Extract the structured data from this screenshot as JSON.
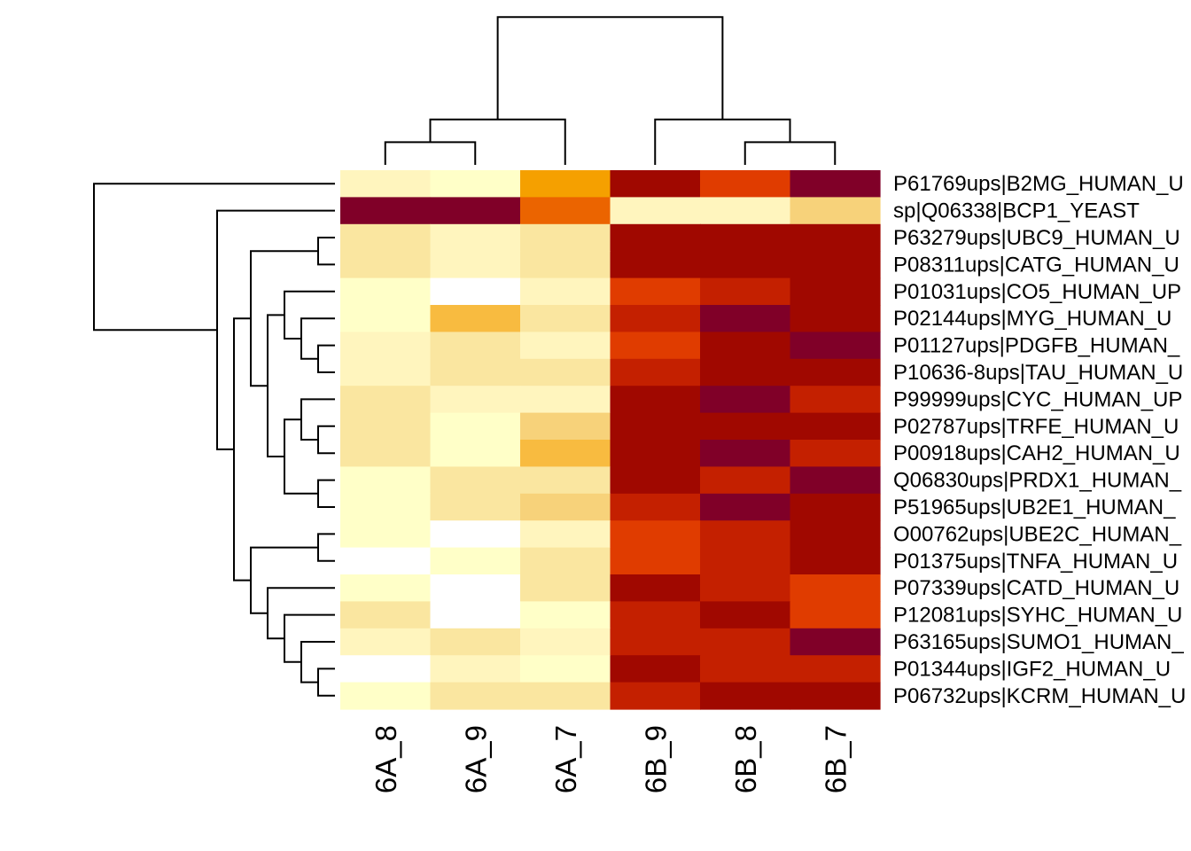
{
  "chart_data": {
    "type": "heatmap",
    "title": "",
    "xlabel": "",
    "ylabel": "",
    "columns": [
      "6A_8",
      "6A_9",
      "6A_7",
      "6B_9",
      "6B_8",
      "6B_7"
    ],
    "rows": [
      "P61769ups|B2MG_HUMAN_U",
      "sp|Q06338|BCP1_YEAST",
      "P63279ups|UBC9_HUMAN_U",
      "P08311ups|CATG_HUMAN_U",
      "P01031ups|CO5_HUMAN_UP",
      "P02144ups|MYG_HUMAN_U",
      "P01127ups|PDGFB_HUMAN_",
      "P10636-8ups|TAU_HUMAN_U",
      "P99999ups|CYC_HUMAN_UP",
      "P02787ups|TRFE_HUMAN_U",
      "P00918ups|CAH2_HUMAN_U",
      "Q06830ups|PRDX1_HUMAN_",
      "P51965ups|UB2E1_HUMAN_",
      "O00762ups|UBE2C_HUMAN_",
      "P01375ups|TNFA_HUMAN_U",
      "P07339ups|CATD_HUMAN_U",
      "P12081ups|SYHC_HUMAN_U",
      "P63165ups|SUMO1_HUMAN_",
      "P01344ups|IGF2_HUMAN_U",
      "P06732ups|KCRM_HUMAN_U"
    ],
    "color_scale": [
      "#FFFFFF",
      "#FFFFC8",
      "#FFF5BE",
      "#FAE6A0",
      "#F7D27A",
      "#F8BB40",
      "#F5A000",
      "#EB6400",
      "#E03C00",
      "#C42000",
      "#A00800",
      "#800028"
    ],
    "color_scale_note": "levels 0 (low, white) to 11 (high, dark red)",
    "values": [
      [
        2,
        1,
        6,
        10,
        8,
        11
      ],
      [
        11,
        11,
        7,
        2,
        2,
        4
      ],
      [
        3,
        2,
        3,
        10,
        10,
        10
      ],
      [
        3,
        2,
        3,
        10,
        10,
        10
      ],
      [
        1,
        0,
        2,
        8,
        9,
        10
      ],
      [
        1,
        5,
        3,
        9,
        11,
        10
      ],
      [
        2,
        3,
        2,
        8,
        10,
        11
      ],
      [
        2,
        3,
        3,
        9,
        10,
        10
      ],
      [
        3,
        2,
        2,
        10,
        11,
        9
      ],
      [
        3,
        1,
        4,
        10,
        10,
        10
      ],
      [
        3,
        1,
        5,
        10,
        11,
        9
      ],
      [
        1,
        3,
        3,
        10,
        9,
        11
      ],
      [
        1,
        3,
        4,
        9,
        11,
        10
      ],
      [
        1,
        0,
        2,
        8,
        9,
        10
      ],
      [
        0,
        1,
        3,
        8,
        9,
        10
      ],
      [
        1,
        0,
        3,
        10,
        9,
        8
      ],
      [
        3,
        0,
        1,
        9,
        10,
        8
      ],
      [
        2,
        3,
        2,
        9,
        9,
        11
      ],
      [
        0,
        2,
        1,
        10,
        9,
        9
      ],
      [
        1,
        3,
        3,
        9,
        10,
        10
      ]
    ],
    "column_dendrogram": [
      {
        "a": 0,
        "b": 1
      },
      {
        "a": "m0",
        "b": 2
      },
      {
        "a": 4,
        "b": 5
      },
      {
        "a": 3,
        "b": "m2"
      },
      {
        "a": "m1",
        "b": "m3"
      }
    ],
    "row_dendrogram": [
      {
        "a": 6,
        "b": 7
      },
      {
        "a": 5,
        "b": "m0"
      },
      {
        "a": 4,
        "b": "m1"
      },
      {
        "a": 9,
        "b": 10
      },
      {
        "a": 8,
        "b": "m3"
      },
      {
        "a": 11,
        "b": 12
      },
      {
        "a": "m4",
        "b": "m5"
      },
      {
        "a": "m2",
        "b": "m6"
      },
      {
        "a": 2,
        "b": 3
      },
      {
        "a": "m8",
        "b": "m7"
      },
      {
        "a": 13,
        "b": 14
      },
      {
        "a": 18,
        "b": 19
      },
      {
        "a": 17,
        "b": "m11"
      },
      {
        "a": 16,
        "b": "m12"
      },
      {
        "a": 15,
        "b": "m13"
      },
      {
        "a": "m10",
        "b": "m14"
      },
      {
        "a": "m9",
        "b": "m15"
      },
      {
        "a": 1,
        "b": "m16"
      },
      {
        "a": 0,
        "b": "m17"
      }
    ]
  }
}
